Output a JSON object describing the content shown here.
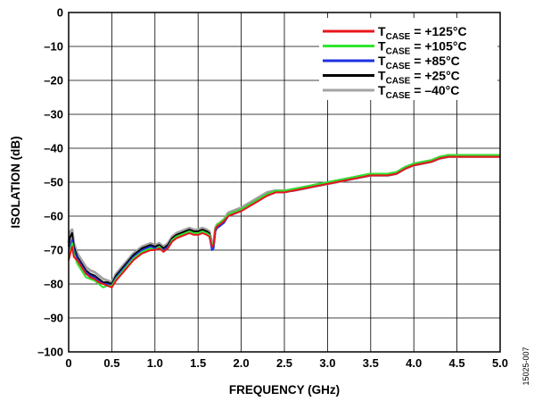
{
  "chart_data": {
    "type": "line",
    "title": "",
    "xlabel": "FREQUENCY (GHz)",
    "ylabel": "ISOLATION (dB)",
    "xlim": [
      0,
      5.0
    ],
    "ylim": [
      -100,
      0
    ],
    "grid": true,
    "legend_position": "top-right",
    "x_ticks": [
      "0",
      "0.5",
      "1.0",
      "1.5",
      "2.0",
      "2.5",
      "3.0",
      "3.5",
      "4.0",
      "4.5",
      "5.0"
    ],
    "y_ticks": [
      "0",
      "–10",
      "–20",
      "–30",
      "–40",
      "–50",
      "–60",
      "–70",
      "–80",
      "–90",
      "–100"
    ],
    "x": [
      0.0,
      0.02,
      0.04,
      0.06,
      0.1,
      0.15,
      0.2,
      0.25,
      0.3,
      0.35,
      0.4,
      0.45,
      0.5,
      0.55,
      0.6,
      0.65,
      0.7,
      0.75,
      0.8,
      0.85,
      0.9,
      0.95,
      1.0,
      1.05,
      1.1,
      1.15,
      1.2,
      1.25,
      1.3,
      1.35,
      1.4,
      1.45,
      1.5,
      1.55,
      1.6,
      1.63,
      1.66,
      1.68,
      1.7,
      1.72,
      1.75,
      1.8,
      1.85,
      1.9,
      1.95,
      2.0,
      2.1,
      2.2,
      2.3,
      2.4,
      2.5,
      2.6,
      2.7,
      2.8,
      2.9,
      3.0,
      3.1,
      3.2,
      3.3,
      3.4,
      3.5,
      3.6,
      3.7,
      3.8,
      3.9,
      4.0,
      4.1,
      4.2,
      4.3,
      4.4,
      4.5,
      4.6,
      4.7,
      4.8,
      4.9,
      5.0
    ],
    "series": [
      {
        "name": "+125°C",
        "color": "#e8161b",
        "values": [
          -73,
          -71,
          -69,
          -72,
          -73,
          -75,
          -77,
          -78,
          -78.5,
          -79.5,
          -80,
          -80.5,
          -81,
          -79,
          -77.5,
          -76,
          -74.5,
          -73,
          -72,
          -71,
          -70.5,
          -70,
          -70,
          -69.5,
          -70.5,
          -69.5,
          -67.5,
          -66.5,
          -66,
          -65.5,
          -65,
          -65.5,
          -65.5,
          -65,
          -65.5,
          -66,
          -69,
          -68.5,
          -64,
          -63,
          -62.5,
          -61.5,
          -60,
          -59.5,
          -59,
          -58.5,
          -57,
          -55.5,
          -54,
          -53,
          -53,
          -52.5,
          -52,
          -51.5,
          -51,
          -50.5,
          -50,
          -49.5,
          -49,
          -48.5,
          -48,
          -48,
          -48,
          -47.5,
          -46,
          -45,
          -44.5,
          -44,
          -43,
          -42.5,
          -42.5,
          -42.5,
          -42.5,
          -42.5,
          -42.5,
          -42.5
        ]
      },
      {
        "name": "+105°C",
        "color": "#2ee62e",
        "values": [
          -72.5,
          -70,
          -68,
          -71,
          -74,
          -76,
          -78,
          -78.5,
          -79,
          -80,
          -81,
          -80.5,
          -80.5,
          -78.5,
          -77,
          -75.5,
          -74,
          -72.5,
          -71.5,
          -70.5,
          -70,
          -69.5,
          -70,
          -69,
          -70.5,
          -69.5,
          -67,
          -66,
          -65.5,
          -65,
          -64.5,
          -65,
          -65,
          -64.5,
          -65,
          -65.5,
          -68.5,
          -68.5,
          -63.5,
          -62.5,
          -62,
          -61,
          -59.5,
          -59,
          -58.5,
          -58,
          -56.5,
          -55,
          -53.5,
          -52.5,
          -52.5,
          -52,
          -51.5,
          -51,
          -50.5,
          -50,
          -49.5,
          -49,
          -48.5,
          -48,
          -47.5,
          -47.5,
          -47.5,
          -47,
          -45.5,
          -44.5,
          -44,
          -43.5,
          -42.5,
          -42,
          -42,
          -42,
          -42,
          -42,
          -42,
          -42
        ]
      },
      {
        "name": "+85°C",
        "color": "#1c31e0",
        "values": [
          -71,
          -69,
          -67,
          -70,
          -72.5,
          -74.5,
          -76.5,
          -77.5,
          -78,
          -79,
          -80,
          -80,
          -80.5,
          -78,
          -76.5,
          -75,
          -73.5,
          -72,
          -71,
          -70,
          -69.5,
          -69,
          -69.5,
          -69,
          -70,
          -69,
          -67,
          -66,
          -65.5,
          -65,
          -64.5,
          -65,
          -65,
          -64.5,
          -65,
          -65.5,
          -70,
          -69.5,
          -64.5,
          -63.5,
          -63,
          -62,
          -60,
          -59.5,
          -59,
          -58.5,
          -57,
          -55.5,
          -54,
          -53,
          -53,
          -52.5,
          -52,
          -51.5,
          -51,
          -50.5,
          -50,
          -49.5,
          -49,
          -48.5,
          -48,
          -48,
          -48,
          -47.5,
          -46,
          -45,
          -44.5,
          -44,
          -43,
          -42.5,
          -42.5,
          -42.5,
          -42.5,
          -42.5,
          -42.5,
          -42.5
        ]
      },
      {
        "name": "+25°C",
        "color": "#000000",
        "values": [
          -69,
          -66,
          -65,
          -69,
          -72,
          -74,
          -76,
          -77,
          -77.5,
          -78.5,
          -79.5,
          -79.5,
          -80,
          -77.5,
          -76,
          -74.5,
          -73,
          -71.5,
          -70.5,
          -69.5,
          -69,
          -68.5,
          -69,
          -68.5,
          -69.5,
          -68.5,
          -66.5,
          -65.5,
          -65,
          -64.5,
          -64,
          -64.5,
          -64.5,
          -64,
          -64.5,
          -65,
          -69,
          -69,
          -64,
          -63,
          -62.5,
          -61.5,
          -59.5,
          -59,
          -58.5,
          -58,
          -56.5,
          -55,
          -53.5,
          -52.5,
          -52.5,
          -52,
          -51.5,
          -51,
          -50.5,
          -50,
          -49.5,
          -49,
          -48.5,
          -48,
          -47.5,
          -47.5,
          -47.5,
          -47,
          -45.5,
          -44.5,
          -44,
          -43.5,
          -42.5,
          -42,
          -42,
          -42,
          -42,
          -42,
          -42,
          -42
        ]
      },
      {
        "name": "–40°C",
        "color": "#a3a3a3",
        "values": [
          -68,
          -64.5,
          -64,
          -68,
          -71,
          -73,
          -75,
          -76,
          -76.5,
          -77.5,
          -78.5,
          -79,
          -79.5,
          -77,
          -75.5,
          -74,
          -72.5,
          -71,
          -70,
          -69,
          -68.5,
          -68,
          -68.5,
          -68,
          -69,
          -68,
          -66,
          -65,
          -64.5,
          -64,
          -63.5,
          -64,
          -64,
          -63.5,
          -64,
          -64.5,
          -68,
          -68,
          -63.5,
          -62.5,
          -62,
          -61,
          -59,
          -58.5,
          -58,
          -57.5,
          -56,
          -54.5,
          -53,
          -52.5,
          -52.5,
          -52.5,
          -52,
          -51.5,
          -51,
          -50.5,
          -50,
          -49.5,
          -49,
          -48.5,
          -48,
          -48,
          -48,
          -47.5,
          -46,
          -45,
          -44.5,
          -44,
          -43,
          -42.5,
          -42.5,
          -42.5,
          -42.5,
          -42.5,
          -42.5,
          -42.5
        ]
      }
    ],
    "legend": [
      {
        "prefix": "T",
        "sub": "CASE",
        "suffix": " = +125°C",
        "color": "#e8161b"
      },
      {
        "prefix": "T",
        "sub": "CASE",
        "suffix": " = +105°C",
        "color": "#2ee62e"
      },
      {
        "prefix": "T",
        "sub": "CASE",
        "suffix": " = +85°C",
        "color": "#1c31e0"
      },
      {
        "prefix": "T",
        "sub": "CASE",
        "suffix": " = +25°C",
        "color": "#000000"
      },
      {
        "prefix": "T",
        "sub": "CASE",
        "suffix": " = –40°C",
        "color": "#a3a3a3"
      }
    ]
  },
  "figure_id": "15025-007"
}
